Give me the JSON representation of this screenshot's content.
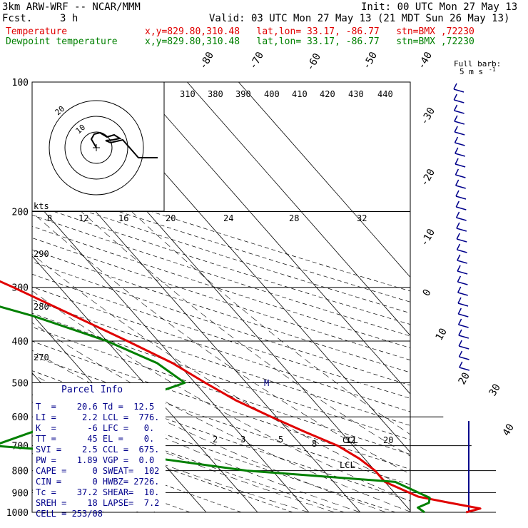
{
  "header": {
    "model": "3km ARW-WRF -- NCAR/MMM",
    "init": "Init: 00 UTC Mon 27 May 13",
    "fcst_label": "Fcst.",
    "fcst_value": "3 h",
    "valid": "Valid: 03 UTC Mon 27 May 13 (21 MDT Sun 26 May 13)"
  },
  "legend": [
    {
      "name": "Temperature",
      "info": "x,y=829.80,310.48   lat,lon= 33.17, -86.77   stn=BMX ,72230",
      "color": "#e00000"
    },
    {
      "name": "Dewpoint temperature",
      "info": "x,y=829.80,310.48   lat,lon= 33.17, -86.77   stn=BMX ,72230",
      "color": "#008000"
    }
  ],
  "full_barb": "Full barb:",
  "full_barb_units": "5 m s",
  "pressure_labels": [
    "100",
    "200",
    "300",
    "400",
    "500",
    "600",
    "700",
    "800",
    "900",
    "1000"
  ],
  "isotherm_labels": [
    "-80",
    "-70",
    "-60",
    "-50",
    "-40",
    "-30",
    "-20",
    "-10",
    "0",
    "10",
    "20",
    "30",
    "40"
  ],
  "theta_labels": [
    "310",
    "380",
    "390",
    "400",
    "410",
    "420",
    "430",
    "440"
  ],
  "theta_side_labels": [
    "290",
    "280",
    "270"
  ],
  "kts_label": "kts",
  "kts_labels": [
    "8",
    "12",
    "16",
    "20",
    "24",
    "28",
    "32"
  ],
  "mixing_labels": [
    "2",
    "3",
    "5",
    "8",
    "12",
    "20"
  ],
  "hodo_rings": [
    "10",
    "20"
  ],
  "markers": {
    "ccl": "CCL",
    "lcl": "LCL",
    "m": "M"
  },
  "parcel": {
    "title": "Parcel Info",
    "rows": [
      "T  =    20.6 Td =  12.5",
      "LI =     2.2 LCL =  776.",
      "K  =      -6 LFC =   0.",
      "TT =      45 EL =    0.",
      "SVI =    2.5 CCL =  675.",
      "PW =    1.89 VGP =  0.0",
      "CAPE =     0 SWEAT=  102",
      "CIN =      0 HWBZ= 2726.",
      "Tc =    37.2 SHEAR=  10.",
      "SREH =    18 LAPSE=  7.2",
      "CELL = 253/08"
    ]
  },
  "chart_data": {
    "type": "line",
    "diagram": "skew-T log-p",
    "y_axis": "pressure (hPa)",
    "ylim": [
      1000,
      100
    ],
    "series": [
      {
        "name": "Temperature",
        "color": "#e00000",
        "points": [
          [
            1000,
            20.6
          ],
          [
            980,
            24
          ],
          [
            950,
            19
          ],
          [
            920,
            14
          ],
          [
            850,
            10
          ],
          [
            800,
            10
          ],
          [
            750,
            9
          ],
          [
            700,
            7
          ],
          [
            650,
            3
          ],
          [
            600,
            -1
          ],
          [
            550,
            -5
          ],
          [
            500,
            -8
          ],
          [
            450,
            -11
          ],
          [
            400,
            -16
          ],
          [
            350,
            -22
          ],
          [
            300,
            -29
          ],
          [
            250,
            -38
          ],
          [
            210,
            -47
          ],
          [
            195,
            -52
          ],
          [
            175,
            -58
          ],
          [
            150,
            -61
          ],
          [
            125,
            -63
          ],
          [
            100,
            -67
          ]
        ]
      },
      {
        "name": "Dewpoint temperature",
        "color": "#008000",
        "points": [
          [
            1000,
            12.5
          ],
          [
            975,
            12
          ],
          [
            950,
            15
          ],
          [
            925,
            16
          ],
          [
            850,
            12
          ],
          [
            800,
            -15
          ],
          [
            750,
            -30
          ],
          [
            700,
            -60
          ],
          [
            650,
            -50
          ],
          [
            600,
            -38
          ],
          [
            550,
            -25
          ],
          [
            500,
            -12
          ],
          [
            450,
            -14
          ],
          [
            400,
            -20
          ],
          [
            350,
            -30
          ],
          [
            300,
            -45
          ],
          [
            260,
            -55
          ],
          [
            240,
            -57
          ],
          [
            200,
            -60
          ],
          [
            170,
            -70
          ],
          [
            130,
            -75
          ],
          [
            100,
            -80
          ]
        ]
      }
    ]
  }
}
